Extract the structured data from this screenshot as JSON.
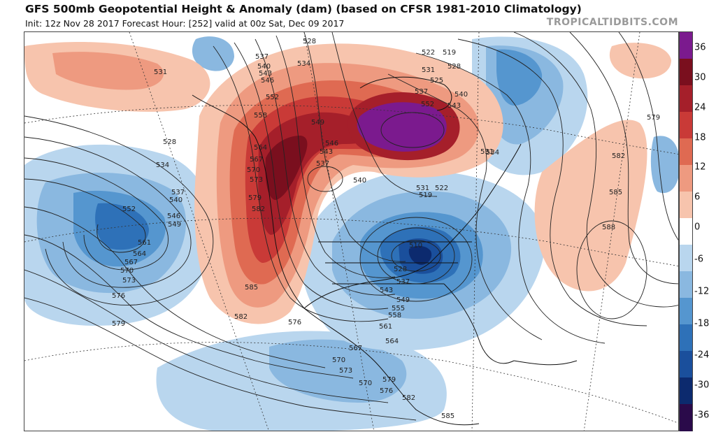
{
  "header": {
    "title": "GFS 500mb Geopotential Height & Anomaly (dam) (based on CFSR 1981-2010 Climatology)",
    "subtitle": "Init: 12z Nov 28 2017   Forecast Hour: [252]   valid at 00z Sat, Dec 09 2017",
    "credit": "TROPICALTIDBITS.COM"
  },
  "colorbar": {
    "tick_labels": [
      "36",
      "30",
      "24",
      "18",
      "12",
      "6",
      "0",
      "-6",
      "-12",
      "-18",
      "-24",
      "-30",
      "-36"
    ],
    "colors": [
      "#2a0a4a",
      "#0c2a6e",
      "#1a4f9c",
      "#2e71b8",
      "#5596cf",
      "#8ab8e0",
      "#b9d6ee",
      "#ffffff",
      "#f7c4ad",
      "#ee9a80",
      "#df6a52",
      "#c93a37",
      "#a51f2a",
      "#7a0f1e",
      "#7b1a8e"
    ]
  },
  "contour_labels": [
    "531",
    "528",
    "537",
    "540",
    "534",
    "543",
    "546",
    "549",
    "552",
    "555",
    "558",
    "561",
    "564",
    "567",
    "570",
    "573",
    "576",
    "579",
    "582",
    "585",
    "588",
    "522",
    "519",
    "525",
    "510"
  ]
}
